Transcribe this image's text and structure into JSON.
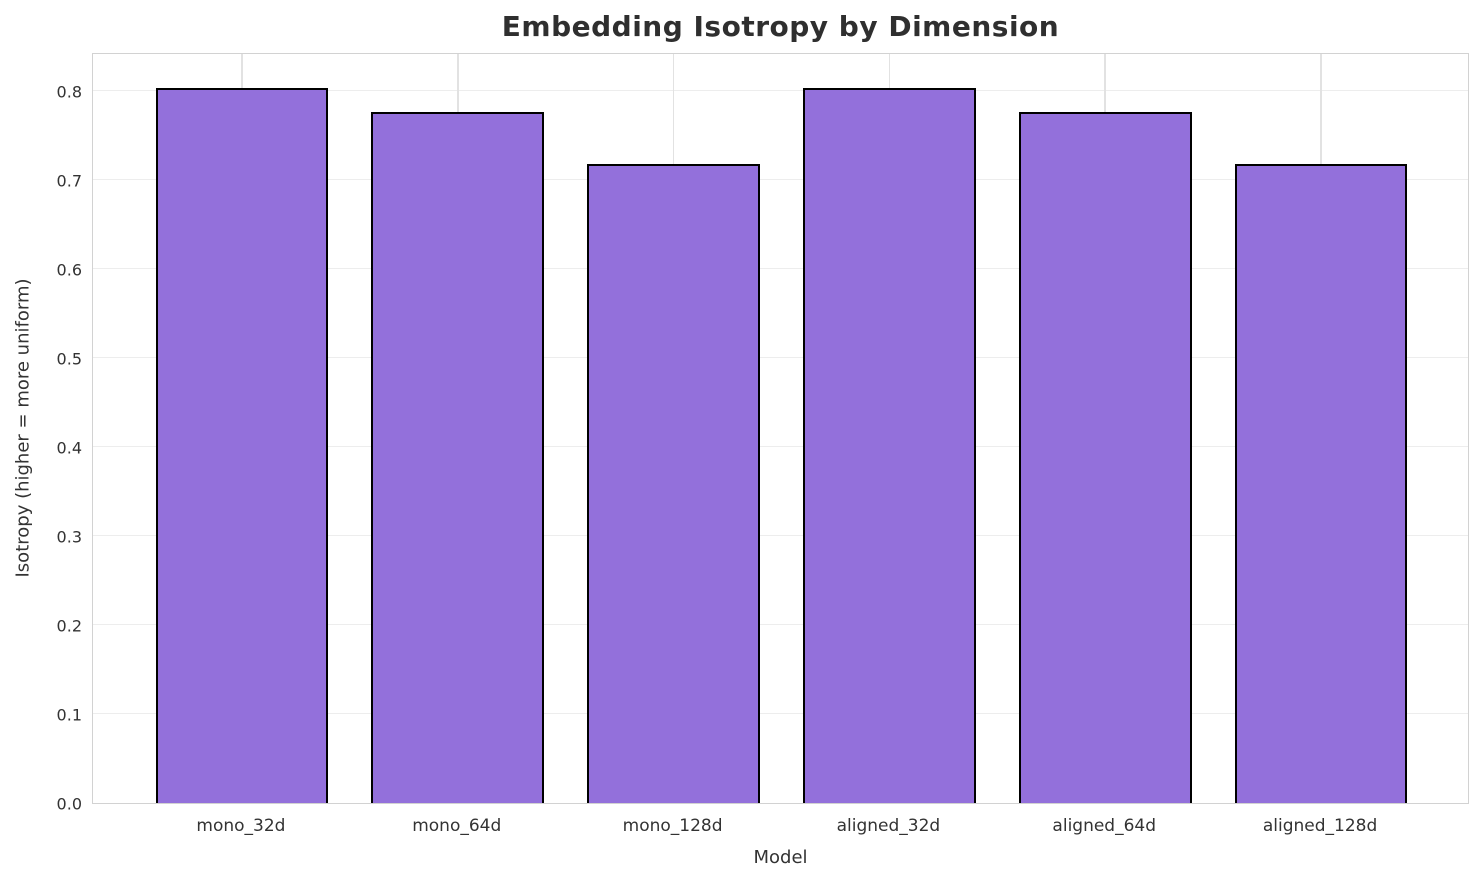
{
  "chart_data": {
    "type": "bar",
    "title": "Embedding Isotropy by Dimension",
    "xlabel": "Model",
    "ylabel": "Isotropy (higher = more uniform)",
    "categories": [
      "mono_32d",
      "mono_64d",
      "mono_128d",
      "aligned_32d",
      "aligned_64d",
      "aligned_128d"
    ],
    "values": [
      0.804,
      0.777,
      0.718,
      0.804,
      0.777,
      0.718
    ],
    "ylim": [
      0,
      0.8442
    ],
    "yticks": [
      0.0,
      0.1,
      0.2,
      0.3,
      0.4,
      0.5,
      0.6,
      0.7,
      0.8
    ],
    "ytick_labels": [
      "0.0",
      "0.1",
      "0.2",
      "0.3",
      "0.4",
      "0.5",
      "0.6",
      "0.7",
      "0.8"
    ],
    "grid": true,
    "legend_position": "none",
    "bar_color": "#9370DB",
    "bar_edge_color": "#000000",
    "grid_color_horizontal": "#ededed",
    "grid_color_vertical": "#e2e2e2",
    "spine_color": "#d2d2d2",
    "text_color": "#333333",
    "background_color": "#ffffff"
  }
}
